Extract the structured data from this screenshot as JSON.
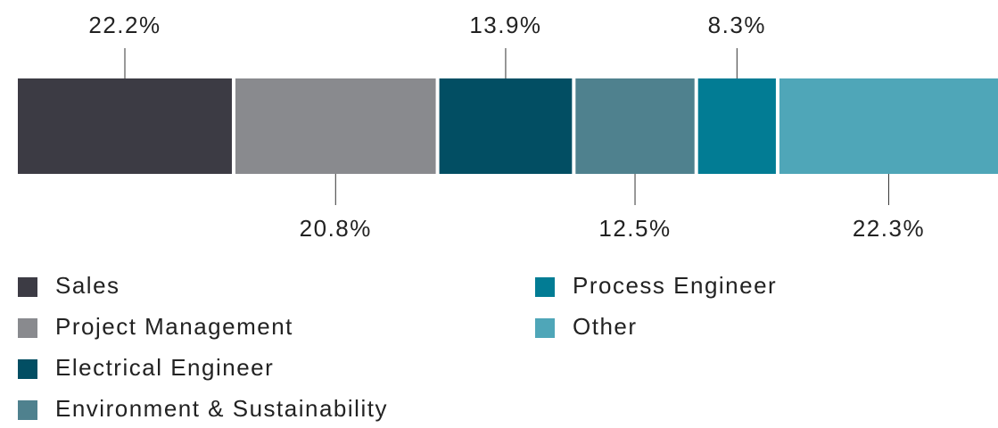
{
  "chart_data": {
    "type": "stacked-bar",
    "categories": [
      "Sales",
      "Project Management",
      "Electrical Engineer",
      "Environment & Sustainability",
      "Process Engineer",
      "Other"
    ],
    "values": [
      22.2,
      20.8,
      13.9,
      12.5,
      8.3,
      22.3
    ],
    "value_labels": [
      "22.2%",
      "20.8%",
      "13.9%",
      "12.5%",
      "8.3%",
      "22.3%"
    ],
    "colors": [
      "#3c3b44",
      "#898a8e",
      "#024e63",
      "#4f818e",
      "#027c94",
      "#4fa6b8"
    ],
    "xlim": [
      0,
      100
    ]
  }
}
